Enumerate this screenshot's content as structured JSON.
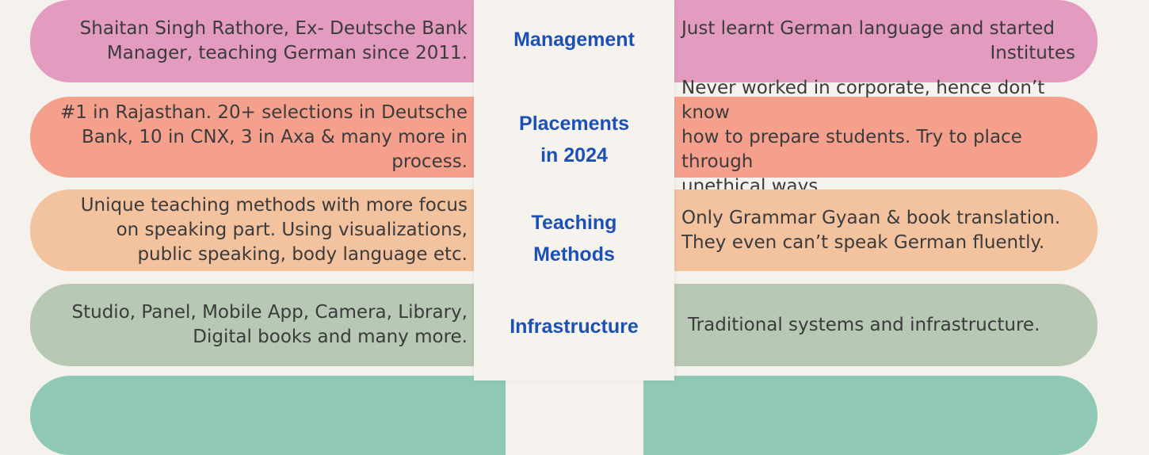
{
  "colors": {
    "pink": "#e39cbf",
    "salmon": "#f5a08c",
    "peach": "#f3c29f",
    "sage": "#b7c8b4",
    "teal": "#8fc9b5",
    "label_blue": "#1c50b4",
    "text": "#3b3b3b"
  },
  "rows": [
    {
      "label_lines": [
        "Management"
      ],
      "left_lines": [
        "Shaitan Singh Rathore, Ex- Deutsche Bank",
        "Manager, teaching German since 2011."
      ],
      "right_lines": [
        "Just learnt German language and started",
        "Institutes"
      ]
    },
    {
      "label_lines": [
        "Placements",
        "in 2024"
      ],
      "left_lines": [
        "#1 in Rajasthan. 20+ selections in Deutsche",
        "Bank, 10 in CNX, 3 in Axa & many more in",
        "process."
      ],
      "right_lines": [
        "Never worked in corporate, hence don’t know",
        "how to prepare students. Try to place through",
        "unethical ways."
      ]
    },
    {
      "label_lines": [
        "Teaching",
        "Methods"
      ],
      "left_lines": [
        "Unique teaching methods with more focus",
        "on speaking part. Using visualizations,",
        "public speaking, body language etc."
      ],
      "right_lines": [
        "Only Grammar Gyaan & book translation.",
        "They even can’t speak German fluently."
      ]
    },
    {
      "label_lines": [
        "Infrastructure"
      ],
      "left_lines": [
        "Studio, Panel, Mobile App, Camera, Library,",
        "Digital books and many more."
      ],
      "right_lines": [
        "Traditional systems and  infrastructure."
      ]
    }
  ]
}
